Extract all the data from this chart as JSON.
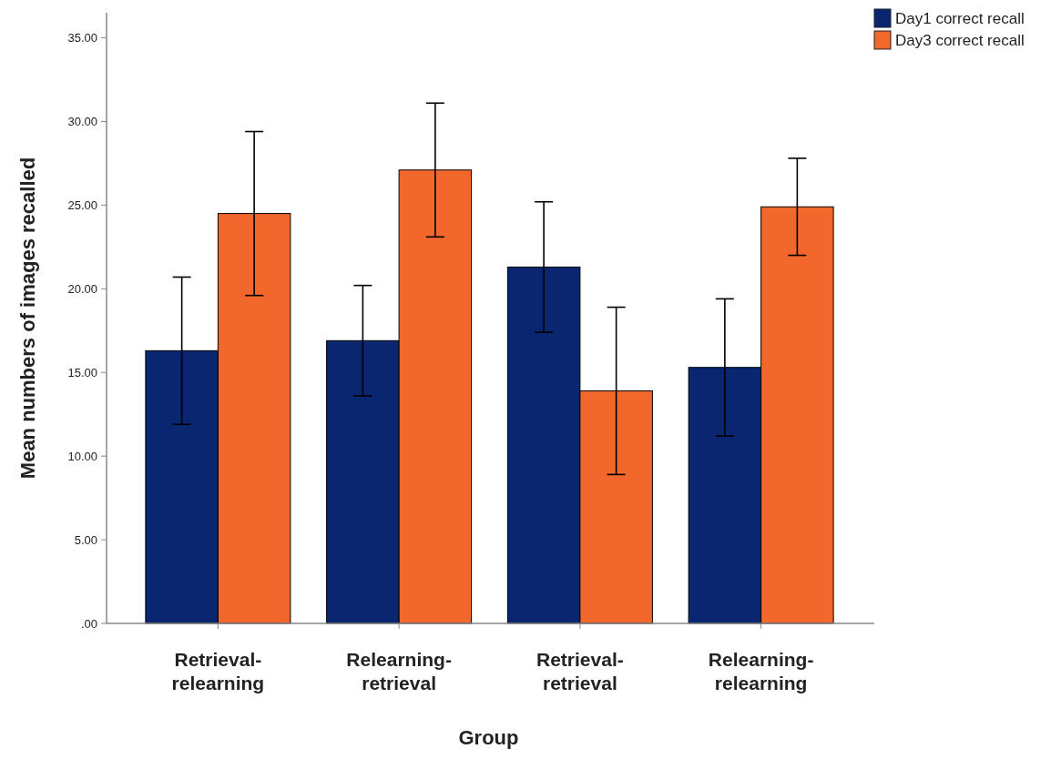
{
  "chart_data": {
    "type": "bar",
    "xlabel": "Group",
    "ylabel": "Mean numbers of images recalled",
    "categories": [
      "Retrieval-relearning",
      "Relearning-retrieval",
      "Retrieval-retrieval",
      "Relearning-relearning"
    ],
    "series": [
      {
        "name": "Day1 correct recall",
        "color": "#0b2670",
        "values": [
          16.3,
          16.9,
          21.3,
          15.3
        ],
        "errors": [
          4.4,
          3.3,
          3.9,
          4.1
        ]
      },
      {
        "name": "Day3 correct recall",
        "color": "#f2682c",
        "values": [
          24.5,
          27.1,
          13.9,
          24.9
        ],
        "errors": [
          4.9,
          4.0,
          5.0,
          2.9
        ]
      }
    ],
    "ylim": [
      0,
      36.5
    ],
    "yticks": [
      {
        "value": 0,
        "label": ".00"
      },
      {
        "value": 5,
        "label": "5.00"
      },
      {
        "value": 10,
        "label": "10.00"
      },
      {
        "value": 15,
        "label": "15.00"
      },
      {
        "value": 20,
        "label": "20.00"
      },
      {
        "value": 25,
        "label": "25.00"
      },
      {
        "value": 30,
        "label": "30.00"
      },
      {
        "value": 35,
        "label": "35.00"
      }
    ],
    "grid": false,
    "legend": "top right"
  }
}
